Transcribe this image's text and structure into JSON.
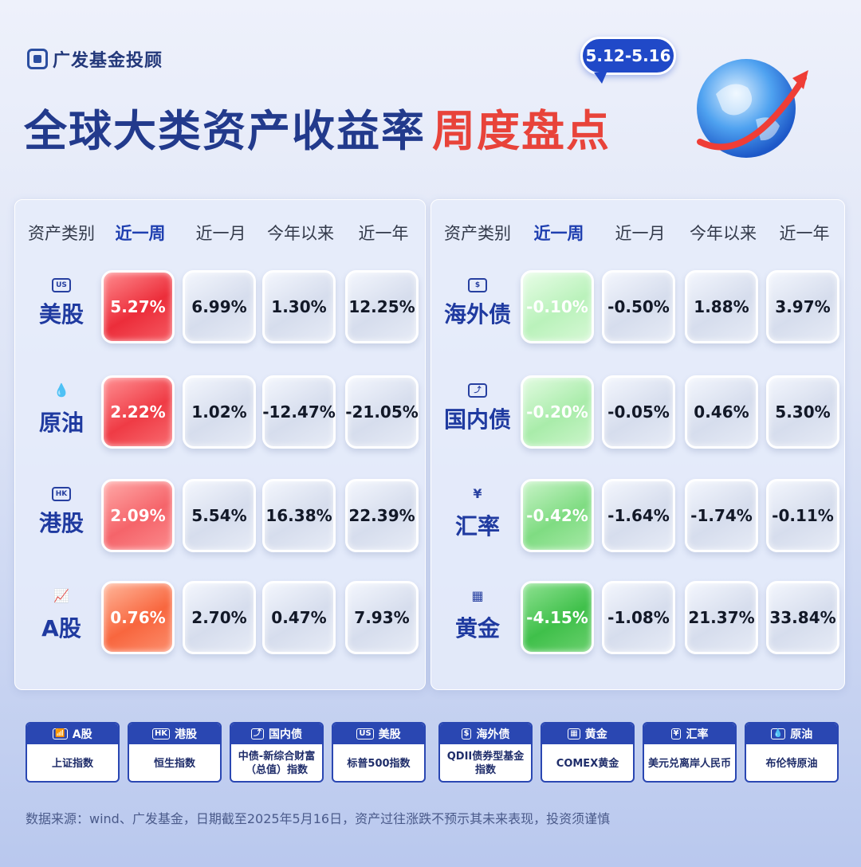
{
  "brand": {
    "name": "广发基金投顾"
  },
  "title": {
    "main": "全球大类资产收益率",
    "accent": "周度盘点"
  },
  "date_range": "5.12-5.16",
  "headers": {
    "asset": "资产类别",
    "week": "近一周",
    "month": "近一月",
    "ytd": "今年以来",
    "year": "近一年"
  },
  "left_rows": [
    {
      "icon": "US",
      "icon_name": "us-badge-icon",
      "name": "美股",
      "week": "5.27%",
      "month": "6.99%",
      "ytd": "1.30%",
      "year": "12.25%"
    },
    {
      "icon": "💧",
      "icon_name": "oil-drop-icon",
      "name": "原油",
      "week": "2.22%",
      "month": "1.02%",
      "ytd": "-12.47%",
      "year": "-21.05%"
    },
    {
      "icon": "HK",
      "icon_name": "hk-badge-icon",
      "name": "港股",
      "week": "2.09%",
      "month": "5.54%",
      "ytd": "16.38%",
      "year": "22.39%"
    },
    {
      "icon": "📈",
      "icon_name": "a-share-chart-icon",
      "name": "A股",
      "week": "0.76%",
      "month": "2.70%",
      "ytd": "0.47%",
      "year": "7.93%"
    }
  ],
  "right_rows": [
    {
      "icon": "$",
      "icon_name": "overseas-bond-icon",
      "name": "海外债",
      "week": "-0.10%",
      "month": "-0.50%",
      "ytd": "1.88%",
      "year": "3.97%"
    },
    {
      "icon": "⤴",
      "icon_name": "domestic-bond-icon",
      "name": "国内债",
      "week": "-0.20%",
      "month": "-0.05%",
      "ytd": "0.46%",
      "year": "5.30%"
    },
    {
      "icon": "¥",
      "icon_name": "yuan-icon",
      "name": "汇率",
      "week": "-0.42%",
      "month": "-1.64%",
      "ytd": "-1.74%",
      "year": "-0.11%"
    },
    {
      "icon": "▦",
      "icon_name": "gold-bar-icon",
      "name": "黄金",
      "week": "-4.15%",
      "month": "-1.08%",
      "ytd": "21.37%",
      "year": "33.84%"
    }
  ],
  "legend": [
    {
      "icon": "📶",
      "label": "A股",
      "desc": "上证指数"
    },
    {
      "icon": "HK",
      "label": "港股",
      "desc": "恒生指数"
    },
    {
      "icon": "⤴",
      "label": "国内债",
      "desc": "中债-新综合财富（总值）指数"
    },
    {
      "icon": "US",
      "label": "美股",
      "desc": "标普500指数"
    },
    {
      "icon": "$",
      "label": "海外债",
      "desc": "QDII债券型基金指数"
    },
    {
      "icon": "▦",
      "label": "黄金",
      "desc": "COMEX黄金"
    },
    {
      "icon": "¥",
      "label": "汇率",
      "desc": "美元兑离岸人民币"
    },
    {
      "icon": "💧",
      "label": "原油",
      "desc": "布伦特原油"
    }
  ],
  "footer": "数据来源：wind、广发基金，日期截至2025年5月16日，资产过往涨跌不预示其未来表现，投资须谨慎"
}
